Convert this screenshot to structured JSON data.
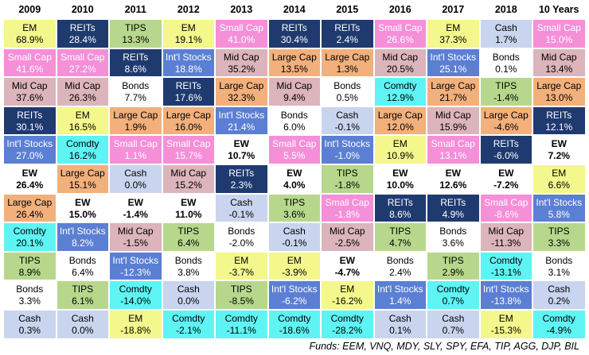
{
  "chart_data": {
    "type": "table",
    "columns": [
      "2009",
      "2010",
      "2011",
      "2012",
      "2013",
      "2014",
      "2015",
      "2016",
      "2017",
      "2018",
      "10 Years"
    ],
    "rows": [
      [
        [
          "EM",
          "68.9%"
        ],
        [
          "REITs",
          "28.4%"
        ],
        [
          "TIPS",
          "13.3%"
        ],
        [
          "EM",
          "19.1%"
        ],
        [
          "Small Cap",
          "41.0%"
        ],
        [
          "REITs",
          "30.4%"
        ],
        [
          "REITs",
          "2.4%"
        ],
        [
          "Small Cap",
          "26.6%"
        ],
        [
          "EM",
          "37.3%"
        ],
        [
          "Cash",
          "1.7%"
        ],
        [
          "Small Cap",
          "15.0%"
        ]
      ],
      [
        [
          "Small Cap",
          "41.6%"
        ],
        [
          "Small Cap",
          "27.2%"
        ],
        [
          "REITs",
          "8.6%"
        ],
        [
          "Int'l Stocks",
          "18.8%"
        ],
        [
          "Mid Cap",
          "35.2%"
        ],
        [
          "Large Cap",
          "13.5%"
        ],
        [
          "Large Cap",
          "1.3%"
        ],
        [
          "Mid Cap",
          "20.5%"
        ],
        [
          "Int'l Stocks",
          "25.1%"
        ],
        [
          "Bonds",
          "0.1%"
        ],
        [
          "Mid Cap",
          "13.4%"
        ]
      ],
      [
        [
          "Mid Cap",
          "37.6%"
        ],
        [
          "Mid Cap",
          "26.3%"
        ],
        [
          "Bonds",
          "7.7%"
        ],
        [
          "REITs",
          "17.6%"
        ],
        [
          "Large Cap",
          "32.3%"
        ],
        [
          "Mid Cap",
          "9.4%"
        ],
        [
          "Bonds",
          "0.5%"
        ],
        [
          "Comdty",
          "12.9%"
        ],
        [
          "Large Cap",
          "21.7%"
        ],
        [
          "TIPS",
          "-1.4%"
        ],
        [
          "Large Cap",
          "13.0%"
        ]
      ],
      [
        [
          "REITs",
          "30.1%"
        ],
        [
          "EM",
          "16.5%"
        ],
        [
          "Large Cap",
          "1.9%"
        ],
        [
          "Large Cap",
          "16.0%"
        ],
        [
          "Int'l Stocks",
          "21.4%"
        ],
        [
          "Bonds",
          "6.0%"
        ],
        [
          "Cash",
          "-0.1%"
        ],
        [
          "Large Cap",
          "12.0%"
        ],
        [
          "Mid Cap",
          "15.9%"
        ],
        [
          "Large Cap",
          "-4.6%"
        ],
        [
          "REITs",
          "12.1%"
        ]
      ],
      [
        [
          "Int'l Stocks",
          "27.0%"
        ],
        [
          "Comdty",
          "16.2%"
        ],
        [
          "Small Cap",
          "1.1%"
        ],
        [
          "Small Cap",
          "15.7%"
        ],
        [
          "EW",
          "10.7%"
        ],
        [
          "Small Cap",
          "5.5%"
        ],
        [
          "Int'l Stocks",
          "-1.0%"
        ],
        [
          "EM",
          "10.9%"
        ],
        [
          "Small Cap",
          "13.1%"
        ],
        [
          "REITs",
          "-6.0%"
        ],
        [
          "EW",
          "7.2%"
        ]
      ],
      [
        [
          "EW",
          "26.4%"
        ],
        [
          "Large Cap",
          "15.1%"
        ],
        [
          "Cash",
          "0.0%"
        ],
        [
          "Mid Cap",
          "15.2%"
        ],
        [
          "REITs",
          "2.3%"
        ],
        [
          "EW",
          "4.0%"
        ],
        [
          "TIPS",
          "-1.8%"
        ],
        [
          "EW",
          "10.0%"
        ],
        [
          "EW",
          "12.6%"
        ],
        [
          "EW",
          "-7.2%"
        ],
        [
          "EM",
          "6.6%"
        ]
      ],
      [
        [
          "Large Cap",
          "26.4%"
        ],
        [
          "EW",
          "15.0%"
        ],
        [
          "EW",
          "-1.4%"
        ],
        [
          "EW",
          "11.0%"
        ],
        [
          "Cash",
          "-0.1%"
        ],
        [
          "TIPS",
          "3.6%"
        ],
        [
          "Small Cap",
          "-1.8%"
        ],
        [
          "REITs",
          "8.6%"
        ],
        [
          "REITs",
          "4.9%"
        ],
        [
          "Small Cap",
          "-8.6%"
        ],
        [
          "Int'l Stocks",
          "5.8%"
        ]
      ],
      [
        [
          "Comdty",
          "20.1%"
        ],
        [
          "Int'l Stocks",
          "8.2%"
        ],
        [
          "Mid Cap",
          "-1.5%"
        ],
        [
          "TIPS",
          "6.4%"
        ],
        [
          "Bonds",
          "-2.0%"
        ],
        [
          "Cash",
          "-0.1%"
        ],
        [
          "Mid Cap",
          "-2.5%"
        ],
        [
          "TIPS",
          "4.7%"
        ],
        [
          "Bonds",
          "3.6%"
        ],
        [
          "Mid Cap",
          "-11.3%"
        ],
        [
          "TIPS",
          "3.3%"
        ]
      ],
      [
        [
          "TIPS",
          "8.9%"
        ],
        [
          "Bonds",
          "6.4%"
        ],
        [
          "Int'l Stocks",
          "-12.3%"
        ],
        [
          "Bonds",
          "3.8%"
        ],
        [
          "EM",
          "-3.7%"
        ],
        [
          "EM",
          "-3.9%"
        ],
        [
          "EW",
          "-4.7%"
        ],
        [
          "Bonds",
          "2.4%"
        ],
        [
          "TIPS",
          "2.9%"
        ],
        [
          "Comdty",
          "-13.1%"
        ],
        [
          "Bonds",
          "3.1%"
        ]
      ],
      [
        [
          "Bonds",
          "3.3%"
        ],
        [
          "TIPS",
          "6.1%"
        ],
        [
          "Comdty",
          "-14.0%"
        ],
        [
          "Cash",
          "0.0%"
        ],
        [
          "TIPS",
          "-8.5%"
        ],
        [
          "Int'l Stocks",
          "-6.2%"
        ],
        [
          "EM",
          "-16.2%"
        ],
        [
          "Int'l Stocks",
          "1.4%"
        ],
        [
          "Comdty",
          "0.7%"
        ],
        [
          "Int'l Stocks",
          "-13.8%"
        ],
        [
          "Cash",
          "0.2%"
        ]
      ],
      [
        [
          "Cash",
          "0.3%"
        ],
        [
          "Cash",
          "0.0%"
        ],
        [
          "EM",
          "-18.8%"
        ],
        [
          "Comdty",
          "-2.1%"
        ],
        [
          "Comdty",
          "-11.1%"
        ],
        [
          "Comdty",
          "-18.6%"
        ],
        [
          "Comdty",
          "-28.2%"
        ],
        [
          "Cash",
          "0.1%"
        ],
        [
          "Cash",
          "0.7%"
        ],
        [
          "EM",
          "-15.3%"
        ],
        [
          "Comdty",
          "-4.9%"
        ]
      ]
    ],
    "asset_colors": {
      "EM": {
        "bg": "#f4f78c",
        "fg": "#000000"
      },
      "REITs": {
        "bg": "#1f3a6f",
        "fg": "#ffffff"
      },
      "TIPS": {
        "bg": "#b7d88c",
        "fg": "#000000"
      },
      "Small Cap": {
        "bg": "#f58fd8",
        "fg": "#ffffff"
      },
      "Cash": {
        "bg": "#c9d5ee",
        "fg": "#000000"
      },
      "Int'l Stocks": {
        "bg": "#5b7fd3",
        "fg": "#ffffff"
      },
      "Mid Cap": {
        "bg": "#dcb4bb",
        "fg": "#000000"
      },
      "Large Cap": {
        "bg": "#f2b07c",
        "fg": "#000000"
      },
      "Bonds": {
        "bg": "#ffffff",
        "fg": "#000000"
      },
      "Comdty": {
        "bg": "#5ef4f4",
        "fg": "#000000"
      },
      "EW": {
        "bg": "#ffffff",
        "fg": "#000000"
      }
    }
  },
  "footer": "Funds: EEM, VNQ, MDY, SLY, SPY, EFA, TIP, AGG, DJP, BIL"
}
